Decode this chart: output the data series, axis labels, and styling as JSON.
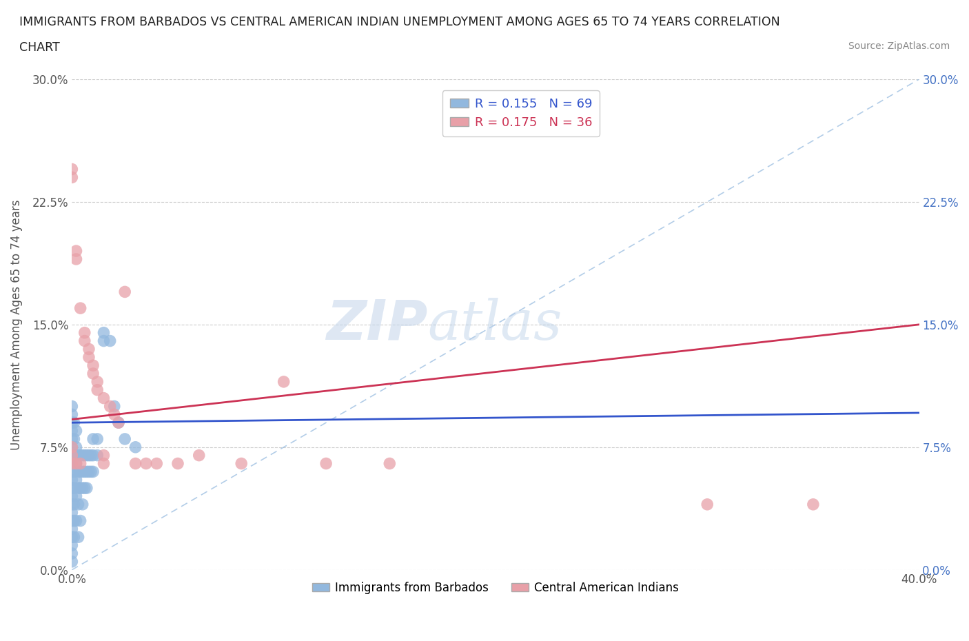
{
  "title_line1": "IMMIGRANTS FROM BARBADOS VS CENTRAL AMERICAN INDIAN UNEMPLOYMENT AMONG AGES 65 TO 74 YEARS CORRELATION",
  "title_line2": "CHART",
  "source": "Source: ZipAtlas.com",
  "ylabel": "Unemployment Among Ages 65 to 74 years",
  "xlim": [
    0.0,
    0.4
  ],
  "ylim": [
    0.0,
    0.3
  ],
  "xticks": [
    0.0,
    0.1,
    0.2,
    0.3,
    0.4
  ],
  "xtick_labels": [
    "0.0%",
    "",
    "",
    "",
    "40.0%"
  ],
  "ytick_labels": [
    "0.0%",
    "7.5%",
    "15.0%",
    "22.5%",
    "30.0%"
  ],
  "yticks": [
    0.0,
    0.075,
    0.15,
    0.225,
    0.3
  ],
  "legend_label1": "R = 0.155   N = 69",
  "legend_label2": "R = 0.175   N = 36",
  "legend_label_bottom1": "Immigrants from Barbados",
  "legend_label_bottom2": "Central American Indians",
  "blue_color": "#92b8de",
  "pink_color": "#e8a0a8",
  "line_blue_color": "#3355cc",
  "line_pink_color": "#cc3355",
  "line_diag_color": "#92b8de",
  "background_color": "#ffffff",
  "watermark_zip": "ZIP",
  "watermark_atlas": "atlas",
  "blue_x": [
    0.0,
    0.0,
    0.0,
    0.0,
    0.0,
    0.0,
    0.0,
    0.0,
    0.0,
    0.0,
    0.0,
    0.0,
    0.0,
    0.0,
    0.0,
    0.0,
    0.0,
    0.0,
    0.0,
    0.0,
    0.001,
    0.001,
    0.001,
    0.001,
    0.001,
    0.001,
    0.001,
    0.001,
    0.002,
    0.002,
    0.002,
    0.002,
    0.002,
    0.002,
    0.003,
    0.003,
    0.003,
    0.003,
    0.003,
    0.004,
    0.004,
    0.004,
    0.004,
    0.005,
    0.005,
    0.005,
    0.005,
    0.006,
    0.006,
    0.006,
    0.007,
    0.007,
    0.007,
    0.008,
    0.008,
    0.009,
    0.009,
    0.01,
    0.01,
    0.01,
    0.012,
    0.012,
    0.015,
    0.015,
    0.018,
    0.02,
    0.022,
    0.025,
    0.03
  ],
  "blue_y": [
    0.04,
    0.045,
    0.05,
    0.055,
    0.06,
    0.065,
    0.07,
    0.075,
    0.08,
    0.085,
    0.03,
    0.035,
    0.025,
    0.02,
    0.015,
    0.01,
    0.005,
    0.09,
    0.095,
    0.1,
    0.04,
    0.05,
    0.06,
    0.07,
    0.08,
    0.09,
    0.03,
    0.02,
    0.045,
    0.055,
    0.065,
    0.075,
    0.085,
    0.03,
    0.04,
    0.05,
    0.06,
    0.07,
    0.02,
    0.05,
    0.06,
    0.07,
    0.03,
    0.05,
    0.06,
    0.07,
    0.04,
    0.05,
    0.06,
    0.07,
    0.05,
    0.06,
    0.07,
    0.06,
    0.07,
    0.06,
    0.07,
    0.06,
    0.07,
    0.08,
    0.07,
    0.08,
    0.14,
    0.145,
    0.14,
    0.1,
    0.09,
    0.08,
    0.075
  ],
  "pink_x": [
    0.0,
    0.0,
    0.0,
    0.0,
    0.0,
    0.002,
    0.002,
    0.002,
    0.004,
    0.004,
    0.006,
    0.006,
    0.008,
    0.008,
    0.01,
    0.01,
    0.012,
    0.012,
    0.015,
    0.015,
    0.015,
    0.018,
    0.02,
    0.022,
    0.025,
    0.03,
    0.035,
    0.04,
    0.05,
    0.06,
    0.08,
    0.1,
    0.12,
    0.15,
    0.3,
    0.35
  ],
  "pink_y": [
    0.24,
    0.245,
    0.065,
    0.07,
    0.075,
    0.19,
    0.195,
    0.065,
    0.16,
    0.065,
    0.14,
    0.145,
    0.13,
    0.135,
    0.12,
    0.125,
    0.11,
    0.115,
    0.105,
    0.065,
    0.07,
    0.1,
    0.095,
    0.09,
    0.17,
    0.065,
    0.065,
    0.065,
    0.065,
    0.07,
    0.065,
    0.115,
    0.065,
    0.065,
    0.04,
    0.04
  ],
  "blue_line_x0": 0.0,
  "blue_line_x1": 0.4,
  "blue_line_y0": 0.09,
  "blue_line_y1": 0.096,
  "pink_line_x0": 0.0,
  "pink_line_x1": 0.4,
  "pink_line_y0": 0.092,
  "pink_line_y1": 0.15
}
